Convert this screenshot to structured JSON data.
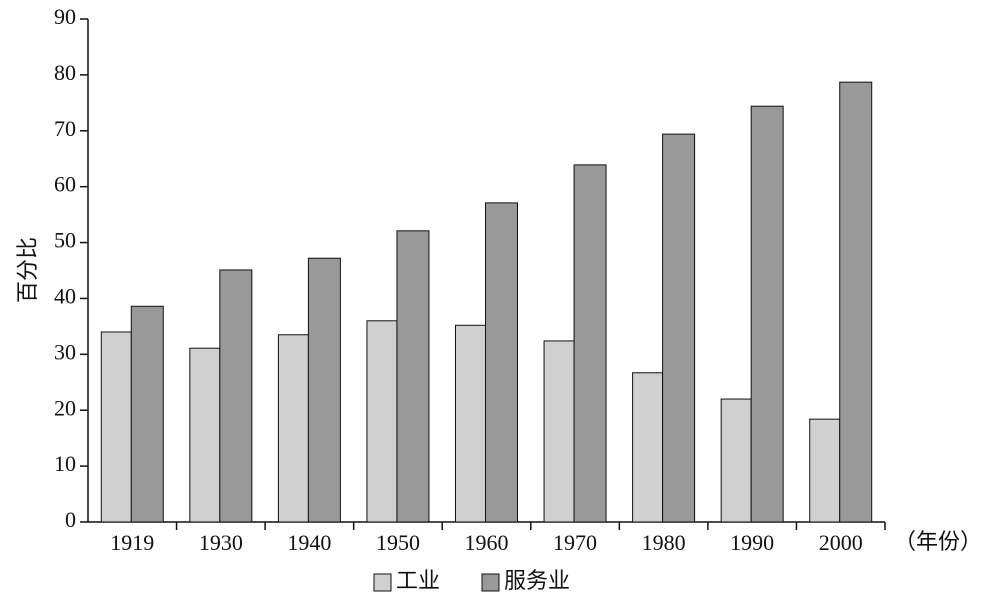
{
  "chart_data": {
    "type": "bar",
    "y_label": "百分比",
    "x_label": "（年份）",
    "categories": [
      "1919",
      "1930",
      "1940",
      "1950",
      "1960",
      "1970",
      "1980",
      "1990",
      "2000"
    ],
    "series": [
      {
        "name": "工业",
        "color": "#d0d0d0",
        "values": [
          34.0,
          31.1,
          33.5,
          36.0,
          35.2,
          32.4,
          26.7,
          22.0,
          18.4
        ]
      },
      {
        "name": "服务业",
        "color": "#999999",
        "values": [
          38.6,
          45.1,
          47.2,
          52.1,
          57.1,
          63.9,
          69.4,
          74.4,
          78.7
        ]
      }
    ],
    "ylim": [
      0,
      90
    ],
    "yticks": [
      0,
      10,
      20,
      30,
      40,
      50,
      60,
      70,
      80,
      90
    ],
    "grid": false
  }
}
